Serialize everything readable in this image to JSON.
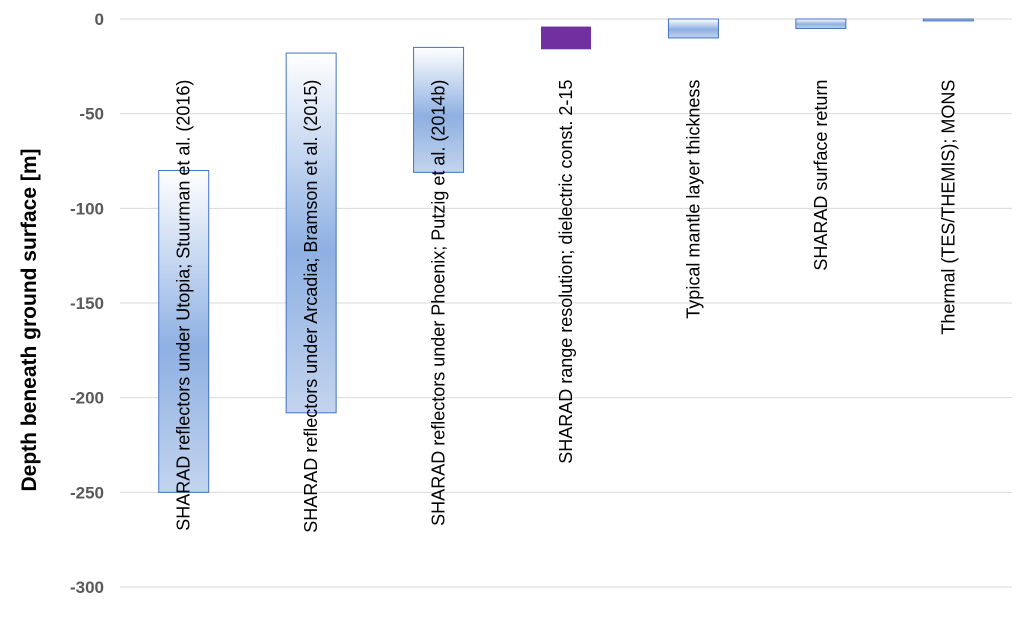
{
  "chart_data": {
    "type": "bar",
    "subtype": "floating-range",
    "title": "",
    "xlabel": "",
    "ylabel": "Depth beneath ground surface [m]",
    "ylim": [
      -300,
      0
    ],
    "yticks": [
      0,
      -50,
      -100,
      -150,
      -200,
      -250,
      -300
    ],
    "grid": true,
    "legend": "none",
    "categories": [
      "SHARAD reflectors under Utopia; Stuurman et al. (2016)",
      "SHARAD reflectors under Arcadia; Bramson et al. (2015)",
      "SHARAD reflectors under Phoenix; Putzig et al. (2014b)",
      "SHARAD range resolution; dielectric const.  2-15",
      "Typical mantle layer thickness",
      "SHARAD surface return",
      "Thermal (TES/THEMIS); MONS"
    ],
    "ranges": [
      {
        "top": -80,
        "bottom": -250,
        "style": "gradient"
      },
      {
        "top": -18,
        "bottom": -208,
        "style": "gradient"
      },
      {
        "top": -15,
        "bottom": -81,
        "style": "gradient"
      },
      {
        "top": -4,
        "bottom": -16,
        "style": "solid"
      },
      {
        "top": 0,
        "bottom": -10,
        "style": "gradient"
      },
      {
        "top": 0,
        "bottom": -5,
        "style": "gradient"
      },
      {
        "top": 0,
        "bottom": -1,
        "style": "gradient"
      }
    ],
    "colors": {
      "gradient_light": "#ffffff",
      "gradient_dark": "#8eb0e2",
      "bar_stroke": "#4472c4",
      "solid_fill": "#7030a0",
      "grid": "#d9d9d9"
    }
  }
}
